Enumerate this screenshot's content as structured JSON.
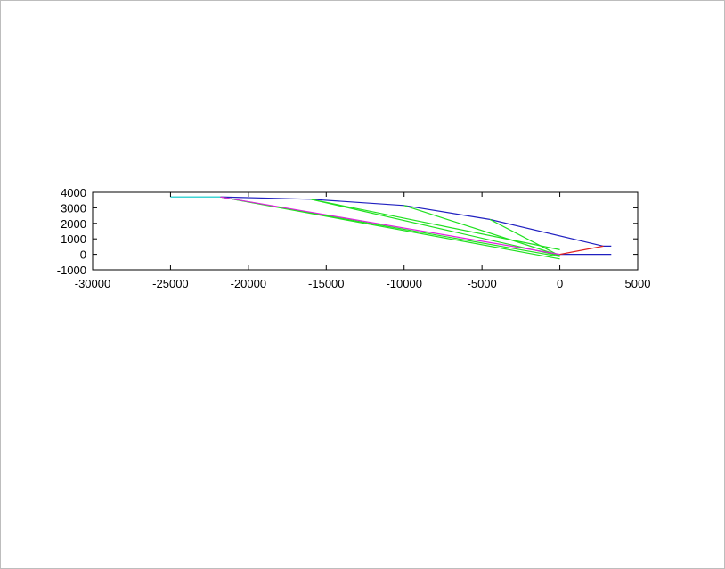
{
  "chart_data": {
    "type": "line",
    "title": "",
    "xlabel": "",
    "ylabel": "",
    "xlim": [
      -30000,
      5000
    ],
    "ylim": [
      -1000,
      4000
    ],
    "xticks": [
      "-30000",
      "-25000",
      "-20000",
      "-15000",
      "-10000",
      "-5000",
      "0",
      "5000"
    ],
    "yticks": [
      "4000",
      "3000",
      "2000",
      "1000",
      "0",
      "-1000"
    ],
    "grid": false,
    "legend": "none",
    "series": [
      {
        "color": "#00c8c8",
        "x": [
          -25000,
          -21800
        ],
        "y": [
          3700,
          3700
        ]
      },
      {
        "color": "#2020c0",
        "x": [
          -21800,
          -16000,
          -10000,
          -4500,
          2800,
          3300
        ],
        "y": [
          3700,
          3550,
          3150,
          2250,
          530,
          530
        ]
      },
      {
        "color": "#2020c0",
        "x": [
          0,
          3300
        ],
        "y": [
          0,
          0
        ]
      },
      {
        "color": "#20e020",
        "x": [
          -21800,
          0
        ],
        "y": [
          3700,
          -150
        ]
      },
      {
        "color": "#20e020",
        "x": [
          -21800,
          0
        ],
        "y": [
          3700,
          -300
        ]
      },
      {
        "color": "#20e020",
        "x": [
          -16000,
          0
        ],
        "y": [
          3550,
          300
        ]
      },
      {
        "color": "#20e020",
        "x": [
          -16000,
          0
        ],
        "y": [
          3550,
          -100
        ]
      },
      {
        "color": "#20e020",
        "x": [
          -10000,
          0
        ],
        "y": [
          3150,
          -80
        ]
      },
      {
        "color": "#20e020",
        "x": [
          -4500,
          0
        ],
        "y": [
          2250,
          -100
        ]
      },
      {
        "color": "#e020e0",
        "x": [
          -21800,
          0
        ],
        "y": [
          3700,
          0
        ]
      },
      {
        "color": "#e02020",
        "x": [
          0,
          2800
        ],
        "y": [
          0,
          530
        ]
      }
    ]
  }
}
